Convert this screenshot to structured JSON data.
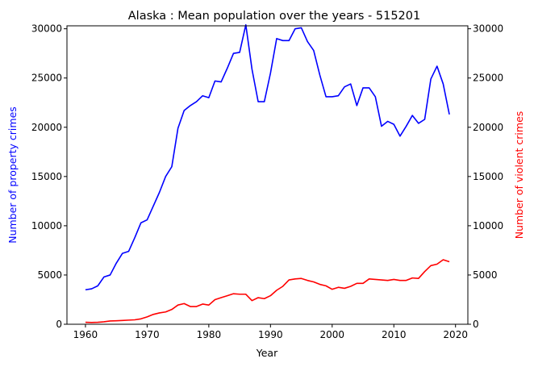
{
  "chart_data": {
    "type": "line",
    "title": "Alaska : Mean population over the years - 515201",
    "xlabel": "Year",
    "ylabel_left": "Number of property crimes",
    "ylabel_right": "Number of violent crimes",
    "xlim": [
      1957,
      2022
    ],
    "ylim_left": [
      0,
      30300
    ],
    "ylim_right": [
      0,
      30300
    ],
    "x_ticks": [
      1960,
      1970,
      1980,
      1990,
      2000,
      2010,
      2020
    ],
    "y_ticks_left": [
      0,
      5000,
      10000,
      15000,
      20000,
      25000,
      30000
    ],
    "y_ticks_right": [
      0,
      5000,
      10000,
      15000,
      20000,
      25000,
      30000
    ],
    "grid": false,
    "x": [
      1960,
      1961,
      1962,
      1963,
      1964,
      1965,
      1966,
      1967,
      1968,
      1969,
      1970,
      1971,
      1972,
      1973,
      1974,
      1975,
      1976,
      1977,
      1978,
      1979,
      1980,
      1981,
      1982,
      1983,
      1984,
      1985,
      1986,
      1987,
      1988,
      1989,
      1990,
      1991,
      1992,
      1993,
      1994,
      1995,
      1996,
      1997,
      1998,
      1999,
      2000,
      2001,
      2002,
      2003,
      2004,
      2005,
      2006,
      2007,
      2008,
      2009,
      2010,
      2011,
      2012,
      2013,
      2014,
      2015,
      2016,
      2017,
      2018,
      2019
    ],
    "series": [
      {
        "axis": "left",
        "color": "#0000ff",
        "values": [
          3500,
          3600,
          3900,
          4800,
          5000,
          6200,
          7200,
          7400,
          8800,
          10300,
          10600,
          12000,
          13400,
          15000,
          16000,
          19900,
          21700,
          22200,
          22600,
          23200,
          23000,
          24700,
          24600,
          26000,
          27500,
          27600,
          30400,
          25900,
          22600,
          22600,
          25500,
          29000,
          28800,
          28800,
          30000,
          30100,
          28700,
          27800,
          25300,
          23100,
          23100,
          23200,
          24100,
          24400,
          22200,
          24000,
          24000,
          23100,
          20100,
          20600,
          20300,
          19100,
          20100,
          21200,
          20400,
          20800,
          24900,
          26200,
          24400,
          21300
        ]
      },
      {
        "axis": "right",
        "color": "#ff0000",
        "values": [
          200,
          180,
          200,
          250,
          330,
          350,
          380,
          420,
          450,
          550,
          750,
          1000,
          1150,
          1250,
          1500,
          1950,
          2100,
          1800,
          1800,
          2050,
          1950,
          2500,
          2700,
          2900,
          3100,
          3050,
          3050,
          2400,
          2700,
          2600,
          2900,
          3450,
          3850,
          4500,
          4600,
          4650,
          4450,
          4300,
          4050,
          3900,
          3550,
          3750,
          3650,
          3850,
          4150,
          4150,
          4600,
          4550,
          4500,
          4450,
          4550,
          4450,
          4450,
          4700,
          4650,
          5350,
          5950,
          6100,
          6550,
          6350
        ]
      }
    ]
  }
}
